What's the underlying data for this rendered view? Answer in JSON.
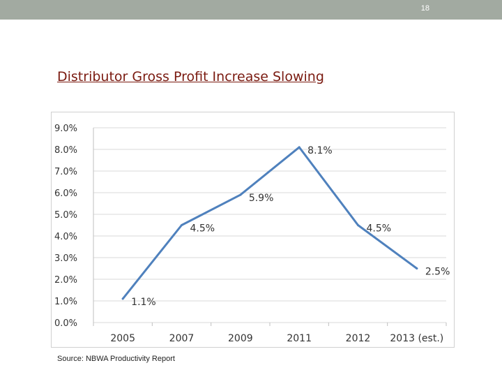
{
  "slide": {
    "page_number": "18",
    "title": "Distributor Gross Profit Increase Slowing",
    "source": "Source: NBWA Productivity Report"
  },
  "colors": {
    "line": "#4f81bd",
    "title": "#7a1a10",
    "top_bar": "#a2aaa1",
    "grid": "#d9d9d9"
  },
  "chart_data": {
    "type": "line",
    "title": "",
    "xlabel": "",
    "ylabel": "",
    "categories": [
      "2005",
      "2007",
      "2009",
      "2011",
      "2012",
      "2013 (est.)"
    ],
    "series": [
      {
        "values": [
          1.1,
          4.5,
          5.9,
          8.1,
          4.5,
          2.5
        ]
      }
    ],
    "data_labels": [
      "1.1%",
      "4.5%",
      "5.9%",
      "8.1%",
      "4.5%",
      "2.5%"
    ],
    "y_ticks": [
      0,
      1,
      2,
      3,
      4,
      5,
      6,
      7,
      8,
      9
    ],
    "y_tick_labels": [
      "0.0%",
      "1.0%",
      "2.0%",
      "3.0%",
      "4.0%",
      "5.0%",
      "6.0%",
      "7.0%",
      "8.0%",
      "9.0%"
    ],
    "ylim": [
      0,
      9
    ],
    "grid": true,
    "legend": "none"
  }
}
